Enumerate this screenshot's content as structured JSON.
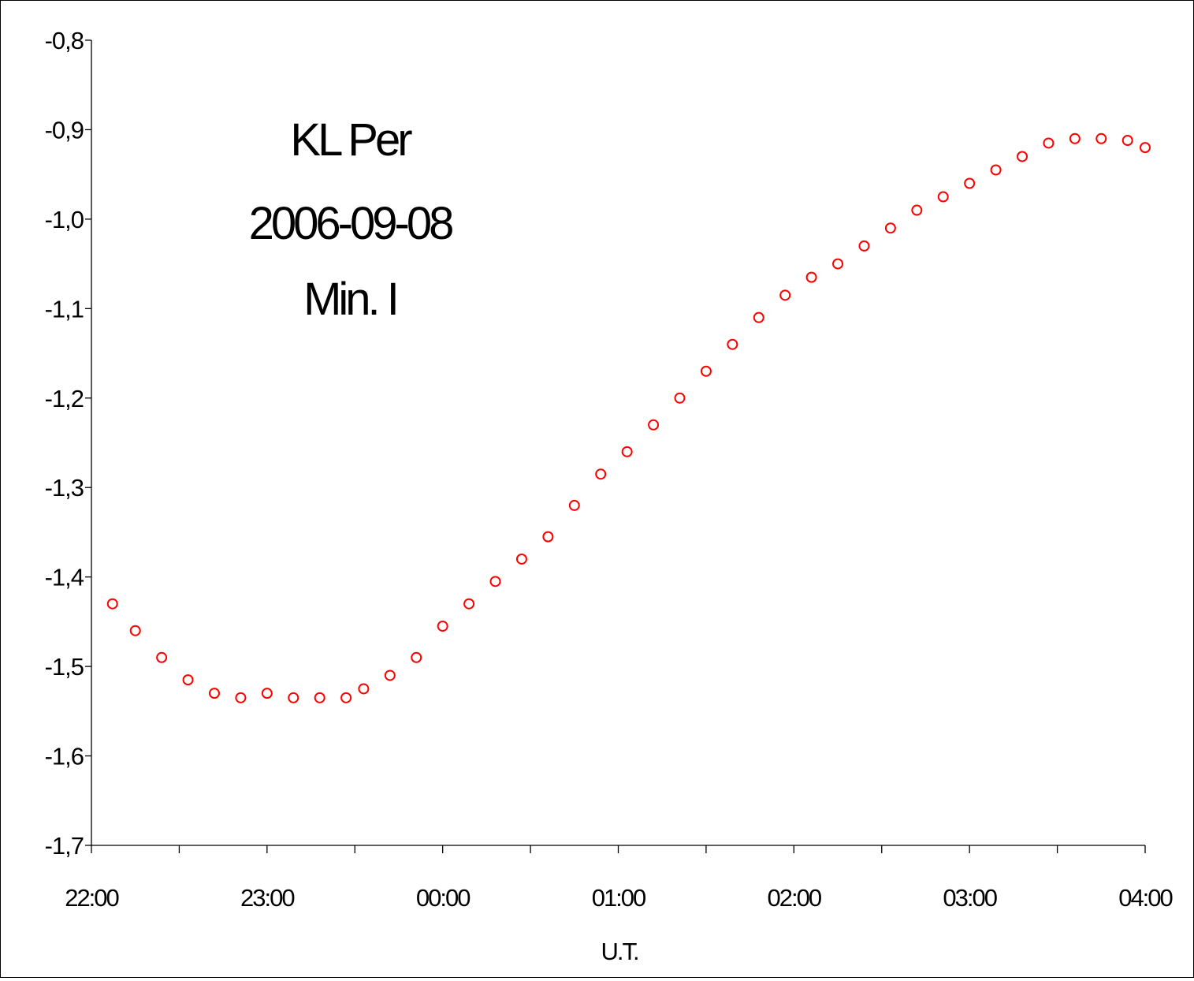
{
  "chart_data": {
    "type": "scatter",
    "title": "",
    "annotation_lines": [
      "KL Per",
      "2006-09-08",
      "Min. I"
    ],
    "xlabel": "U.T.",
    "ylabel": "",
    "x_tick_labels": [
      "22:00",
      "23:00",
      "00:00",
      "01:00",
      "02:00",
      "03:00",
      "04:00"
    ],
    "y_tick_labels": [
      "-0,8",
      "-0,9",
      "-1,0",
      "-1,1",
      "-1,2",
      "-1,3",
      "-1,4",
      "-1,5",
      "-1,6",
      "-1,7"
    ],
    "xlim_hours_after_22h": [
      0,
      6
    ],
    "ylim": [
      -1.7,
      -0.8
    ],
    "grid": false,
    "legend": "none",
    "marker": "open-circle",
    "marker_color": "#ff0000",
    "series": [
      {
        "x_unit": "hours after 22:00 U.T.",
        "points": [
          [
            0.12,
            -1.43
          ],
          [
            0.25,
            -1.46
          ],
          [
            0.4,
            -1.49
          ],
          [
            0.55,
            -1.515
          ],
          [
            0.7,
            -1.53
          ],
          [
            0.85,
            -1.535
          ],
          [
            1.0,
            -1.53
          ],
          [
            1.15,
            -1.535
          ],
          [
            1.3,
            -1.535
          ],
          [
            1.45,
            -1.535
          ],
          [
            1.55,
            -1.525
          ],
          [
            1.7,
            -1.51
          ],
          [
            1.85,
            -1.49
          ],
          [
            2.0,
            -1.455
          ],
          [
            2.15,
            -1.43
          ],
          [
            2.3,
            -1.405
          ],
          [
            2.45,
            -1.38
          ],
          [
            2.6,
            -1.355
          ],
          [
            2.75,
            -1.32
          ],
          [
            2.9,
            -1.285
          ],
          [
            3.05,
            -1.26
          ],
          [
            3.2,
            -1.23
          ],
          [
            3.35,
            -1.2
          ],
          [
            3.5,
            -1.17
          ],
          [
            3.65,
            -1.14
          ],
          [
            3.8,
            -1.11
          ],
          [
            3.95,
            -1.085
          ],
          [
            4.1,
            -1.065
          ],
          [
            4.25,
            -1.05
          ],
          [
            4.4,
            -1.03
          ],
          [
            4.55,
            -1.01
          ],
          [
            4.7,
            -0.99
          ],
          [
            4.85,
            -0.975
          ],
          [
            5.0,
            -0.96
          ],
          [
            5.15,
            -0.945
          ],
          [
            5.3,
            -0.93
          ],
          [
            5.45,
            -0.915
          ],
          [
            5.6,
            -0.91
          ],
          [
            5.75,
            -0.91
          ],
          [
            5.9,
            -0.912
          ],
          [
            6.0,
            -0.92
          ]
        ]
      }
    ]
  }
}
